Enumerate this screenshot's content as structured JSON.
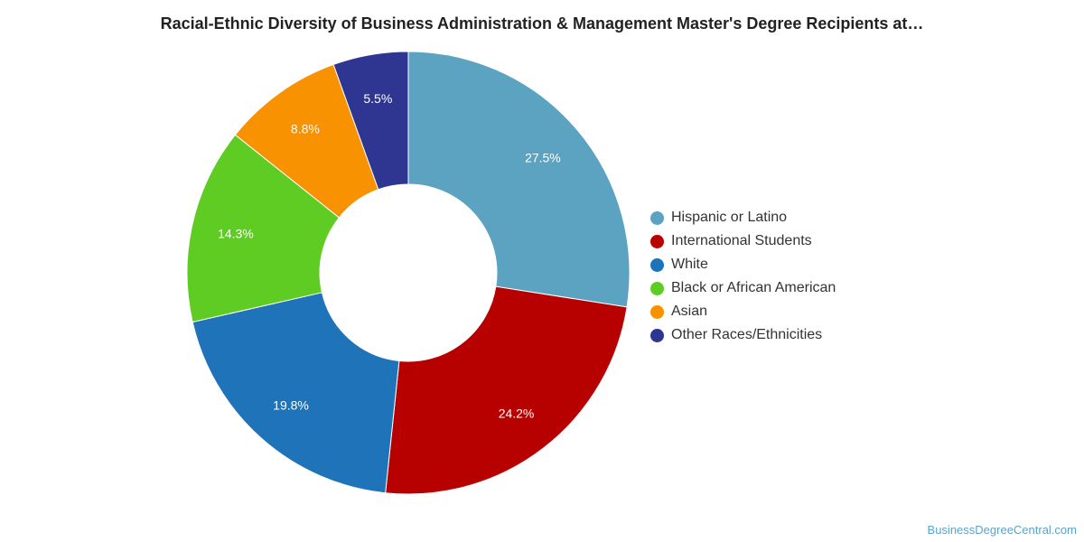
{
  "chart_data": {
    "type": "pie",
    "title": "Racial-Ethnic Diversity of Business Administration & Management Master's Degree Recipients at…",
    "categories": [
      "Hispanic or Latino",
      "International Students",
      "White",
      "Black or African American",
      "Asian",
      "Other Races/Ethnicities"
    ],
    "values": [
      27.5,
      24.2,
      19.8,
      14.3,
      8.8,
      5.5
    ],
    "data_labels": [
      "27.5%",
      "24.2%",
      "19.8%",
      "14.3%",
      "8.8%",
      "5.5%"
    ],
    "colors": [
      "#5ba3c0",
      "#b70000",
      "#1e73b9",
      "#5fcc23",
      "#f89200",
      "#2e3691"
    ],
    "donut": true,
    "legend_position": "right"
  },
  "footer": {
    "source": "BusinessDegreeCentral.com"
  }
}
